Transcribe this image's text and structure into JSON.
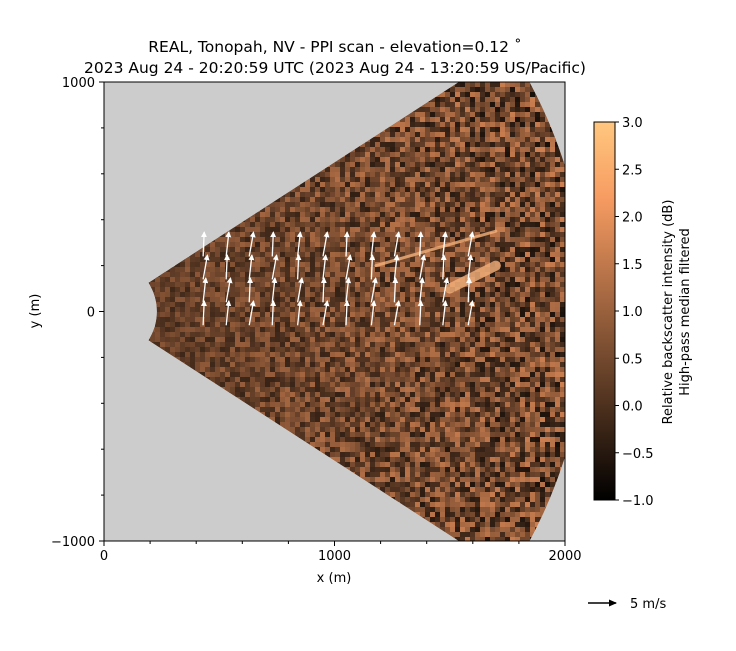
{
  "chart_data": {
    "type": "heatmap",
    "title_line1": "REAL, Tonopah, NV - PPI scan - elevation=0.12$^\\circ$",
    "title_line1_display": "REAL, Tonopah, NV - PPI scan - elevation=0.12 ˚",
    "title_line2": "2023 Aug 24 - 20:20:59 UTC (2023 Aug 24 - 13:20:59 US/Pacific)",
    "xlabel": "x (m)",
    "ylabel": "y (m)",
    "xlim": [
      0,
      2000
    ],
    "ylim": [
      -1000,
      1000
    ],
    "xticks": [
      "0",
      "1000",
      "2000"
    ],
    "yticks": [
      "1000",
      "0",
      "−1000"
    ],
    "colorbar": {
      "label_line1": "Relative backscatter intensity (dB)",
      "label_line2": "High-pass median filtered",
      "range": [
        -1.0,
        3.0
      ],
      "ticks": [
        "3.0",
        "2.5",
        "2.0",
        "1.5",
        "1.0",
        "0.5",
        "0.0",
        "−0.5",
        "−1.0"
      ]
    },
    "scan_sector": {
      "min_range_m": 230,
      "max_range_m": 2100,
      "azimuth_half_width_deg": 33,
      "background_color": "#cccccc",
      "colormap": "copper"
    },
    "features": [
      {
        "name": "plume_streak",
        "x": [
          1180,
          1700
        ],
        "y": [
          200,
          350
        ]
      },
      {
        "name": "bright_patch",
        "x": [
          1500,
          1700
        ],
        "y": [
          100,
          200
        ]
      }
    ],
    "wind_vectors": {
      "columns_x": [
        430,
        530,
        630,
        730,
        840,
        950,
        1050,
        1160,
        1260,
        1370,
        1470,
        1580
      ],
      "rows_y": [
        -60,
        40,
        140,
        240
      ],
      "u_mps_typical": 0.5,
      "v_mps_typical": 4.5,
      "color": "#ffffff"
    },
    "quiver_key": {
      "label": "5 m/s",
      "value_mps": 5
    }
  }
}
